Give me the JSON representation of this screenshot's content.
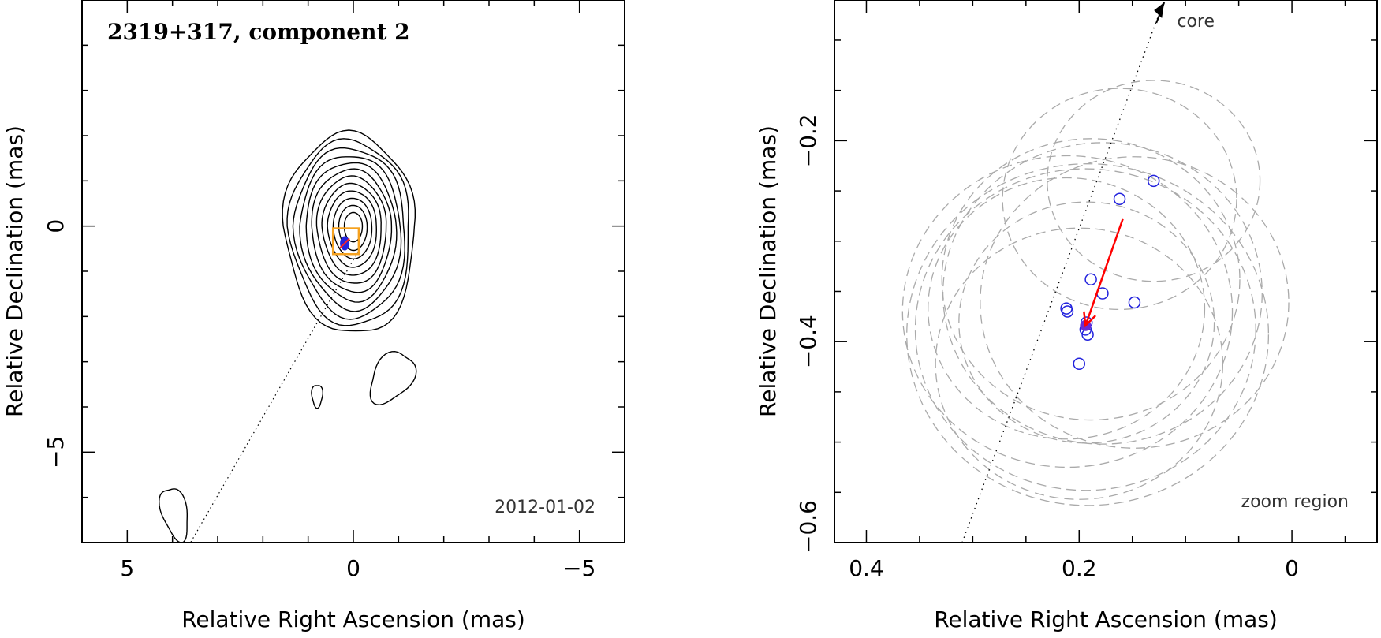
{
  "chart_data": [
    {
      "type": "contour",
      "title": "2319+317, component 2",
      "epoch": "2012-01-02",
      "xlabel": "Relative Right Ascension (mas)",
      "ylabel": "Relative Declination (mas)",
      "xlim": [
        6,
        -6
      ],
      "ylim": [
        -7,
        5
      ],
      "xticks": [
        5,
        0,
        -5
      ],
      "yticks": [
        0,
        -5
      ],
      "xtick_labels": [
        "5",
        "0",
        "−5"
      ],
      "ytick_labels": [
        "0",
        "−5"
      ],
      "peak": {
        "x": 0,
        "y": 0
      },
      "contour_rings": 12,
      "jet_line": {
        "from": [
          -0.2,
          -0.4
        ],
        "to": [
          3.6,
          -7
        ]
      },
      "zoom_box": {
        "x": [
          0.45,
          -0.12
        ],
        "y": [
          -0.05,
          -0.62
        ]
      },
      "component": {
        "x": 0.19,
        "y": -0.38
      },
      "colors": {
        "contour": "#000000",
        "zoom_box": "#f5a11f",
        "component": "#2222dd"
      }
    },
    {
      "type": "scatter",
      "annotation_core": "core",
      "annotation_zoom": "zoom region",
      "xlabel": "Relative Right Ascension (mas)",
      "ylabel": "Relative Declination (mas)",
      "xlim": [
        0.43,
        -0.08
      ],
      "ylim": [
        -0.6,
        -0.06
      ],
      "xticks": [
        0.4,
        0.2,
        0
      ],
      "yticks": [
        -0.2,
        -0.4,
        -0.6
      ],
      "xtick_labels": [
        "0.4",
        "0.2",
        "0"
      ],
      "ytick_labels": [
        "−0.2",
        "−0.4",
        "−0.6"
      ],
      "positions": [
        {
          "x": 0.13,
          "y": -0.24
        },
        {
          "x": 0.162,
          "y": -0.258
        },
        {
          "x": 0.189,
          "y": -0.338
        },
        {
          "x": 0.178,
          "y": -0.352
        },
        {
          "x": 0.148,
          "y": -0.361
        },
        {
          "x": 0.212,
          "y": -0.367
        },
        {
          "x": 0.211,
          "y": -0.37
        },
        {
          "x": 0.193,
          "y": -0.381
        },
        {
          "x": 0.194,
          "y": -0.388
        },
        {
          "x": 0.192,
          "y": -0.393
        },
        {
          "x": 0.2,
          "y": -0.422
        }
      ],
      "mean_position": {
        "x": 0.194,
        "y": -0.384
      },
      "motion_arrow": {
        "from": {
          "x": 0.159,
          "y": -0.278
        },
        "to": {
          "x": 0.194,
          "y": -0.384
        }
      },
      "uncertainty_circles": [
        {
          "x": 0.13,
          "y": -0.24,
          "r": 0.1
        },
        {
          "x": 0.162,
          "y": -0.258,
          "r": 0.11
        },
        {
          "x": 0.189,
          "y": -0.338,
          "r": 0.14
        },
        {
          "x": 0.178,
          "y": -0.352,
          "r": 0.15
        },
        {
          "x": 0.148,
          "y": -0.361,
          "r": 0.145
        },
        {
          "x": 0.212,
          "y": -0.367,
          "r": 0.13
        },
        {
          "x": 0.211,
          "y": -0.37,
          "r": 0.155
        },
        {
          "x": 0.193,
          "y": -0.381,
          "r": 0.12
        },
        {
          "x": 0.194,
          "y": -0.388,
          "r": 0.16
        },
        {
          "x": 0.192,
          "y": -0.393,
          "r": 0.17
        },
        {
          "x": 0.2,
          "y": -0.422,
          "r": 0.135
        }
      ],
      "core_direction": {
        "from": {
          "x": 0.31,
          "y": -0.6
        },
        "to": {
          "x": 0.12,
          "y": -0.06
        }
      },
      "colors": {
        "points": "#2222dd",
        "mean": "#ff0000",
        "arrow": "#ff0000",
        "circles": "#aaaaaa",
        "core_arrow": "#000000"
      }
    }
  ]
}
